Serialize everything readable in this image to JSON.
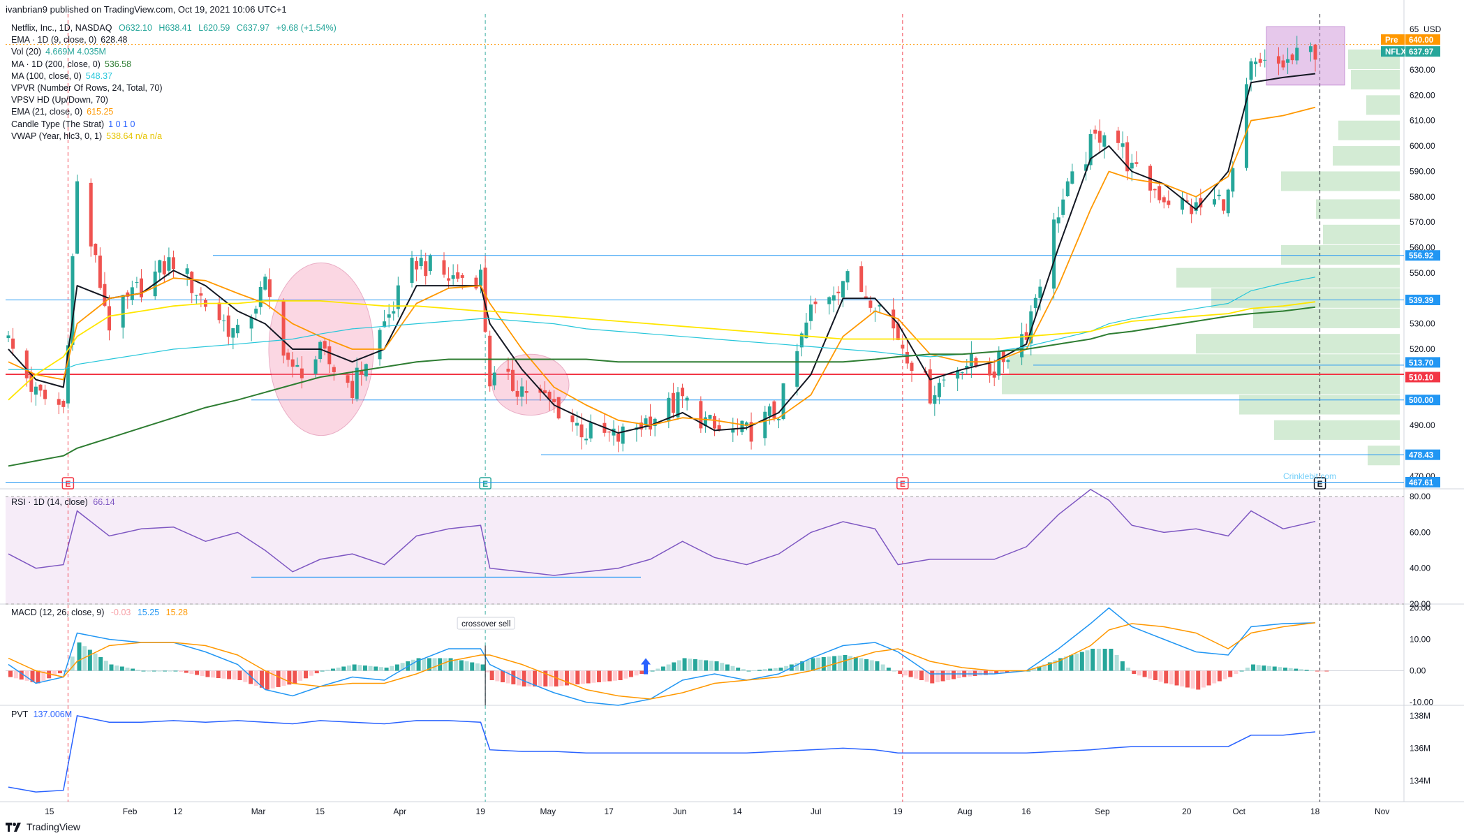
{
  "header": {
    "publisher": "ivanbrian9 published on TradingView.com, Oct 19, 2021 10:06 UTC+1",
    "brand": "TradingView"
  },
  "main_pane": {
    "symbol_line": {
      "name": "Netflix, Inc., 1D, NASDAQ",
      "o": "O632.10",
      "h": "H638.41",
      "l": "L620.59",
      "c": "C637.97",
      "chg": "+9.68 (+1.54%)"
    },
    "indicators": [
      {
        "label": "EMA · 1D (9, close, 0)",
        "value": "628.48",
        "color": "#131722"
      },
      {
        "label": "Vol (20)",
        "value": "4.669M  4.035M",
        "color": "#26a69a"
      },
      {
        "label": "MA · 1D (200, close, 0)",
        "value": "536.58",
        "color": "#2e7d32"
      },
      {
        "label": "MA (100, close, 0)",
        "value": "548.37",
        "color": "#26c6da"
      },
      {
        "label": "VPVR (Number Of Rows, 24, Total, 70)",
        "value": "",
        "color": "#131722"
      },
      {
        "label": "VPSV HD (Up/Down, 70)",
        "value": "",
        "color": "#131722"
      },
      {
        "label": "EMA (21, close, 0)",
        "value": "615.25",
        "color": "#ff9800"
      },
      {
        "label": "Candle Type (The Strat)",
        "value": "1 0 1 0",
        "color": "#2962ff"
      },
      {
        "label": "VWAP (Year, hlc3, 0, 1)",
        "value": "538.64  n/a  n/a",
        "color": "#e6c400"
      }
    ],
    "currency": "USD",
    "watermark": "Crinklebit.com",
    "earnings_marker": "E"
  },
  "price_tags": [
    {
      "text": "Pre",
      "value": "640.00",
      "price": 640.0,
      "color": "#ff9800"
    },
    {
      "text": "NFLX",
      "value": "637.97",
      "price": 637.97,
      "color": "#26a69a"
    },
    {
      "text": "",
      "value": "556.92",
      "price": 556.92,
      "color": "#2196f3"
    },
    {
      "text": "",
      "value": "539.39",
      "price": 539.39,
      "color": "#2196f3"
    },
    {
      "text": "",
      "value": "513.70",
      "price": 513.7,
      "color": "#2196f3"
    },
    {
      "text": "",
      "value": "510.10",
      "price": 510.1,
      "color": "#f23645"
    },
    {
      "text": "",
      "value": "500.00",
      "price": 500.0,
      "color": "#2196f3"
    },
    {
      "text": "",
      "value": "478.43",
      "price": 478.43,
      "color": "#2196f3"
    },
    {
      "text": "",
      "value": "467.61",
      "price": 467.61,
      "color": "#2196f3"
    }
  ],
  "rsi_pane": {
    "label": "RSI · 1D (14, close)",
    "value": "66.14"
  },
  "macd_pane": {
    "label": "MACD (12, 26, close, 9)",
    "v1": "-0.03",
    "v2": "15.25",
    "v3": "15.28",
    "annotation": "crossover sell"
  },
  "pvt_pane": {
    "label": "PVT",
    "value": "137.006M"
  },
  "chart_data": [
    {
      "type": "candlestick",
      "title": "Netflix, Inc., 1D, NASDAQ",
      "x_tick_labels": [
        "15",
        "Feb",
        "12",
        "Mar",
        "15",
        "Apr",
        "19",
        "May",
        "17",
        "Jun",
        "14",
        "Jul",
        "19",
        "Aug",
        "16",
        "Sep",
        "20",
        "Oct",
        "18",
        "Nov"
      ],
      "y_tick_labels": [
        "65",
        "640.00",
        "630.00",
        "620.00",
        "610.00",
        "600.00",
        "590.00",
        "580.00",
        "570.00",
        "560.00",
        "550.00",
        "530.00",
        "520.00",
        "490.00",
        "470.00"
      ],
      "ylim": [
        465,
        652
      ],
      "close_path_x": [
        "Jan 6",
        "Jan 12",
        "Jan 18",
        "Jan 21",
        "Jan 28",
        "Feb 4",
        "Feb 11",
        "Feb 18",
        "Feb 25",
        "Mar 3",
        "Mar 9",
        "Mar 15",
        "Mar 22",
        "Mar 29",
        "Apr 5",
        "Apr 12",
        "Apr 19",
        "Apr 21",
        "Apr 28",
        "May 5",
        "May 12",
        "May 19",
        "May 26",
        "Jun 2",
        "Jun 9",
        "Jun 16",
        "Jun 23",
        "Jun 30",
        "Jul 7",
        "Jul 14",
        "Jul 19",
        "Jul 26",
        "Aug 2",
        "Aug 9",
        "Aug 16",
        "Aug 23",
        "Aug 30",
        "Sep 3",
        "Sep 8",
        "Sep 15",
        "Sep 22",
        "Sep 29",
        "Oct 4",
        "Oct 11",
        "Oct 18"
      ],
      "close_path_y": [
        523,
        502,
        497,
        585,
        530,
        545,
        555,
        538,
        525,
        545,
        510,
        518,
        505,
        530,
        555,
        548,
        549,
        508,
        505,
        498,
        487,
        485,
        493,
        500,
        488,
        487,
        496,
        535,
        548,
        540,
        525,
        503,
        515,
        512,
        528,
        575,
        600,
        610,
        590,
        580,
        575,
        580,
        630,
        632,
        637.97
      ],
      "series": [
        {
          "name": "EMA · 1D (9, close, 0)",
          "values": [
            520,
            508,
            505,
            545,
            540,
            542,
            551,
            545,
            535,
            530,
            520,
            520,
            515,
            520,
            545,
            545,
            545,
            530,
            512,
            498,
            492,
            487,
            490,
            495,
            488,
            489,
            495,
            510,
            540,
            540,
            530,
            508,
            512,
            515,
            522,
            560,
            595,
            600,
            590,
            585,
            575,
            590,
            625,
            627,
            628.48
          ]
        },
        {
          "name": "EMA (21, close, 0)",
          "values": [
            515,
            510,
            508,
            530,
            540,
            542,
            548,
            547,
            542,
            538,
            530,
            525,
            520,
            520,
            538,
            544,
            545,
            538,
            520,
            505,
            498,
            492,
            490,
            493,
            492,
            490,
            493,
            502,
            525,
            535,
            532,
            518,
            515,
            515,
            520,
            545,
            575,
            590,
            587,
            585,
            580,
            588,
            610,
            612,
            615.25
          ]
        },
        {
          "name": "MA (100, close, 0)",
          "values": [
            512,
            512,
            512,
            514,
            516,
            518,
            520,
            521,
            522,
            523,
            524,
            526,
            528,
            529,
            530,
            531,
            532,
            532,
            531,
            530,
            528,
            527,
            526,
            525,
            524,
            523,
            522,
            521,
            520,
            519,
            518,
            517,
            518,
            519,
            521,
            524,
            527,
            530,
            532,
            534,
            536,
            538,
            543,
            546,
            548.37
          ]
        },
        {
          "name": "MA · 1D (200, close, 0)",
          "values": [
            474,
            476,
            478,
            481,
            485,
            489,
            493,
            497,
            500,
            503,
            506,
            509,
            511,
            513,
            515,
            516,
            516,
            516,
            516,
            516,
            516,
            515,
            515,
            515,
            515,
            515,
            515,
            515,
            515,
            516,
            517,
            518,
            518,
            519,
            520,
            522,
            524,
            526,
            527,
            529,
            531,
            533,
            534,
            535,
            536.58
          ]
        },
        {
          "name": "VWAP (Year, hlc3, 0, 1)",
          "values": [
            500,
            510,
            517,
            525,
            533,
            535,
            537,
            538,
            538,
            539,
            539,
            539,
            538,
            537,
            537,
            536,
            535,
            535,
            534,
            533,
            532,
            531,
            530,
            529,
            528,
            527,
            526,
            525,
            524,
            524,
            524,
            524,
            524,
            524,
            525,
            526,
            527,
            529,
            531,
            532,
            533,
            534,
            536,
            537,
            538.64
          ]
        }
      ],
      "horizontal_levels": [
        556.92,
        539.39,
        513.7,
        510.1,
        500.0,
        478.43,
        467.61
      ]
    },
    {
      "type": "line",
      "title": "RSI · 1D (14, close)",
      "y_tick_labels": [
        "80.00",
        "60.00",
        "40.00",
        "20.00"
      ],
      "ylim": [
        20,
        82
      ],
      "series": [
        {
          "name": "RSI · 1D (14, close)",
          "values": [
            48,
            40,
            42,
            72,
            58,
            62,
            63,
            55,
            60,
            50,
            38,
            45,
            48,
            42,
            58,
            62,
            64,
            40,
            38,
            36,
            38,
            40,
            45,
            55,
            46,
            42,
            48,
            60,
            66,
            62,
            42,
            45,
            45,
            45,
            52,
            70,
            84,
            78,
            64,
            60,
            62,
            58,
            72,
            62,
            66.14
          ]
        }
      ],
      "levels": [
        80,
        20
      ]
    },
    {
      "type": "bar",
      "title": "MACD (12, 26, close, 9)",
      "y_tick_labels": [
        "20.00",
        "10.00",
        "0.00",
        "-10.00"
      ],
      "ylim": [
        -11,
        21
      ],
      "series": [
        {
          "name": "MACD",
          "values": [
            2,
            -4,
            -2,
            12,
            10,
            9,
            9,
            6,
            2,
            -6,
            -8,
            -5,
            -2,
            -3,
            3,
            7,
            7,
            2,
            -3,
            -7,
            -10,
            -11,
            -9,
            -3,
            -1,
            -3,
            -1,
            4,
            8,
            9,
            6,
            -1,
            -1,
            -1,
            0,
            7,
            15,
            20,
            14,
            10,
            6,
            5,
            14,
            15,
            15.25
          ]
        },
        {
          "name": "Signal",
          "values": [
            4,
            0,
            -2,
            3,
            8,
            9,
            9,
            8,
            5,
            0,
            -4,
            -5,
            -4,
            -4,
            -1,
            3,
            5,
            5,
            2,
            -2,
            -6,
            -8,
            -9,
            -7,
            -4,
            -3,
            -2,
            0,
            3,
            6,
            7,
            3,
            1,
            0,
            0,
            3,
            8,
            13,
            15,
            14,
            12,
            7,
            12,
            14,
            15.28
          ]
        },
        {
          "name": "Histogram",
          "values": [
            -2,
            -4,
            0,
            9,
            2,
            0,
            0,
            -2,
            -3,
            -6,
            -4,
            0,
            2,
            1,
            4,
            4,
            2,
            -3,
            -5,
            -5,
            -4,
            -3,
            0,
            4,
            3,
            0,
            1,
            4,
            5,
            3,
            -1,
            -4,
            -2,
            -1,
            0,
            4,
            7,
            7,
            -1,
            -4,
            -6,
            -2,
            2,
            1,
            -0.03
          ]
        }
      ]
    },
    {
      "type": "line",
      "title": "PVT",
      "y_tick_labels": [
        "138M",
        "136M",
        "134M"
      ],
      "ylim": [
        132.7,
        138.6
      ],
      "series": [
        {
          "name": "PVT",
          "values": [
            133.6,
            133.3,
            133.4,
            138.0,
            137.6,
            137.6,
            137.7,
            137.6,
            137.7,
            137.6,
            137.5,
            137.7,
            137.6,
            137.5,
            137.7,
            137.7,
            137.6,
            135.9,
            135.8,
            135.8,
            135.7,
            135.7,
            135.7,
            135.7,
            135.7,
            135.7,
            135.8,
            135.9,
            136.0,
            135.9,
            135.7,
            135.7,
            135.7,
            135.7,
            135.7,
            135.8,
            135.9,
            136.0,
            136.1,
            136.1,
            136.1,
            136.1,
            136.8,
            136.8,
            137.006
          ]
        }
      ]
    }
  ]
}
